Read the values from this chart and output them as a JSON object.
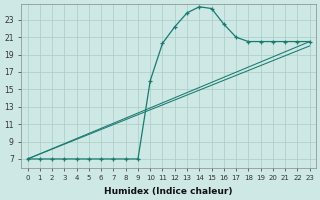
{
  "xlabel": "Humidex (Indice chaleur)",
  "bg_color": "#cde8e5",
  "grid_color": "#aaccc8",
  "line_color": "#1a7a6e",
  "xlim": [
    -0.5,
    23.5
  ],
  "ylim": [
    6.0,
    24.8
  ],
  "xticks": [
    0,
    1,
    2,
    3,
    4,
    5,
    6,
    7,
    8,
    9,
    10,
    11,
    12,
    13,
    14,
    15,
    16,
    17,
    18,
    19,
    20,
    21,
    22,
    23
  ],
  "yticks": [
    7,
    9,
    11,
    13,
    15,
    17,
    19,
    21,
    23
  ],
  "line1_x": [
    0,
    1,
    2,
    3,
    4,
    5,
    6,
    7,
    8,
    9,
    10,
    11,
    12,
    13,
    14,
    15,
    16,
    17,
    18,
    19,
    20,
    21,
    22,
    23
  ],
  "line1_y": [
    7,
    7,
    7,
    7,
    7,
    7,
    7,
    7,
    7,
    7,
    16,
    20.3,
    22.2,
    23.8,
    24.5,
    24.3,
    22.5,
    21.0,
    20.5,
    20.5,
    20.5,
    20.5,
    20.5,
    20.5
  ],
  "line2_x": [
    0,
    23
  ],
  "line2_y": [
    7,
    20.5
  ],
  "line3_x": [
    0,
    23
  ],
  "line3_y": [
    7,
    20.0
  ]
}
